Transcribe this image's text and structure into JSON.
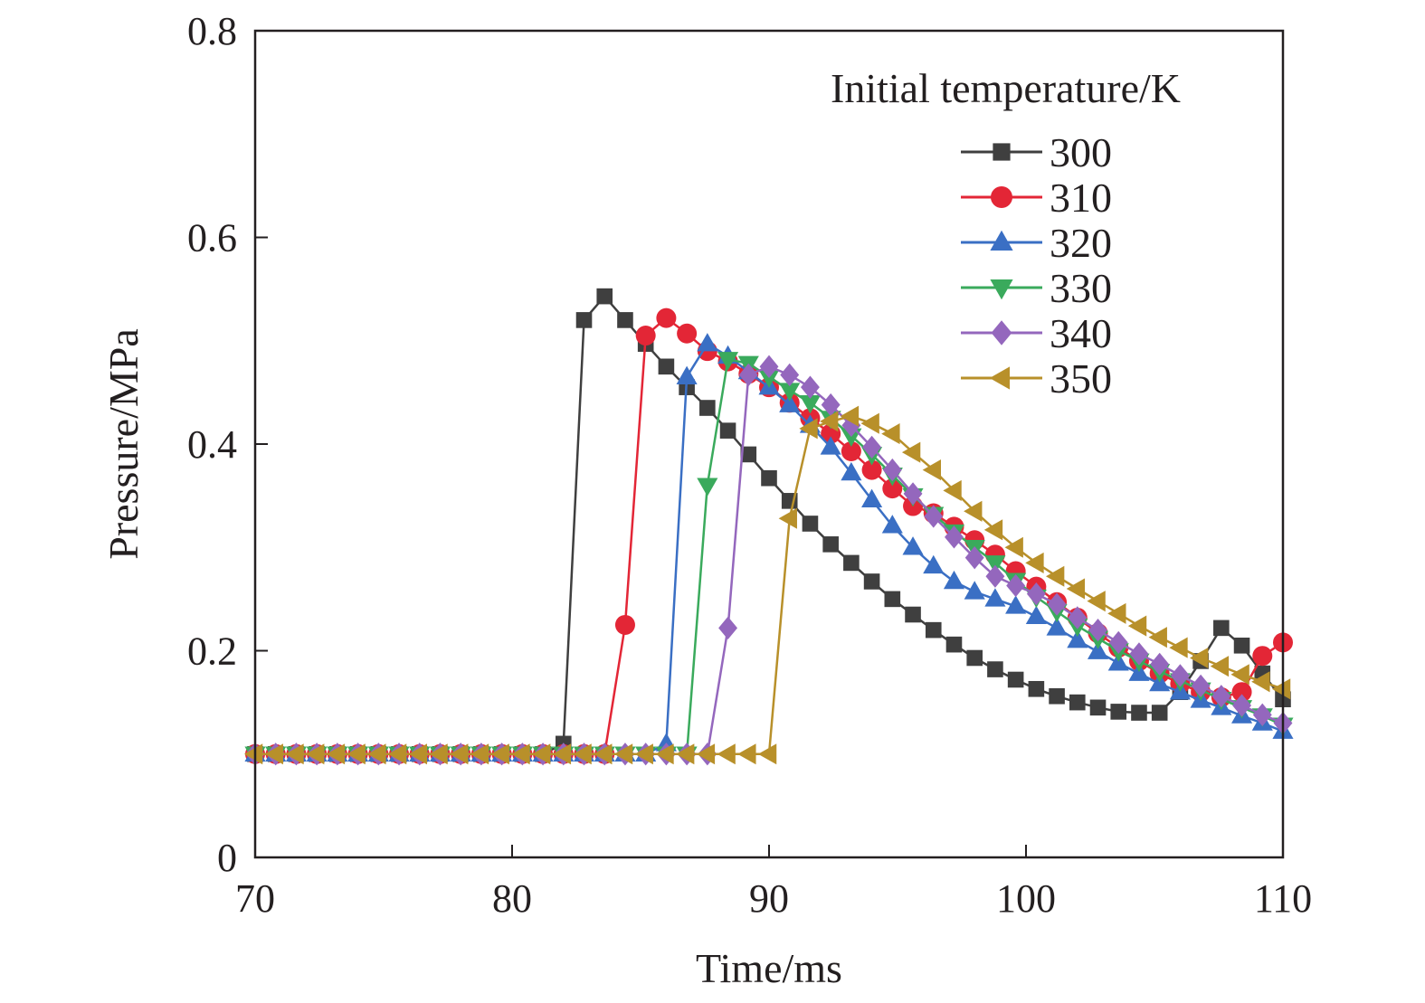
{
  "chart_data": {
    "type": "line",
    "xlabel": "Time/ms",
    "ylabel": "Pressure/MPa",
    "xlim": [
      70,
      110
    ],
    "ylim": [
      0,
      0.8
    ],
    "xticks": [
      70,
      80,
      90,
      100,
      110
    ],
    "yticks": [
      0,
      0.2,
      0.4,
      0.6,
      0.8
    ],
    "ytick_labels": [
      "0",
      "0.2",
      "0.4",
      "0.6",
      "0.8"
    ],
    "grid": false,
    "legend": {
      "title": "Initial temperature/K",
      "placement": "top-right"
    },
    "series": [
      {
        "name": "300",
        "color": "#3f3f3f",
        "marker": "square",
        "x": [
          70,
          70.8,
          71.6,
          72.4,
          73.2,
          74,
          74.8,
          75.6,
          76.4,
          77.2,
          78,
          78.8,
          79.6,
          80.4,
          81.2,
          82,
          82.8,
          83.6,
          84.4,
          85.2,
          86,
          86.8,
          87.6,
          88.4,
          89.2,
          90,
          90.8,
          91.6,
          92.4,
          93.2,
          94,
          94.8,
          95.6,
          96.4,
          97.2,
          98,
          98.8,
          99.6,
          100.4,
          101.2,
          102,
          102.8,
          103.6,
          104.4,
          105.2,
          106,
          106.8,
          107.6,
          108.4,
          109.2,
          110
        ],
        "y": [
          0.1,
          0.1,
          0.1,
          0.1,
          0.1,
          0.1,
          0.1,
          0.1,
          0.1,
          0.1,
          0.1,
          0.1,
          0.1,
          0.1,
          0.1,
          0.11,
          0.52,
          0.543,
          0.52,
          0.497,
          0.475,
          0.455,
          0.435,
          0.413,
          0.39,
          0.367,
          0.345,
          0.323,
          0.303,
          0.285,
          0.267,
          0.25,
          0.235,
          0.22,
          0.206,
          0.193,
          0.182,
          0.172,
          0.163,
          0.156,
          0.15,
          0.145,
          0.141,
          0.14,
          0.14,
          0.16,
          0.19,
          0.222,
          0.205,
          0.178,
          0.153
        ]
      },
      {
        "name": "310",
        "color": "#e32636",
        "marker": "circle",
        "x": [
          70,
          70.8,
          71.6,
          72.4,
          73.2,
          74,
          74.8,
          75.6,
          76.4,
          77.2,
          78,
          78.8,
          79.6,
          80.4,
          81.2,
          82,
          82.8,
          83.6,
          84.4,
          85.2,
          86,
          86.8,
          87.6,
          88.4,
          89.2,
          90,
          90.8,
          91.6,
          92.4,
          93.2,
          94,
          94.8,
          95.6,
          96.4,
          97.2,
          98,
          98.8,
          99.6,
          100.4,
          101.2,
          102,
          102.8,
          103.6,
          104.4,
          105.2,
          106,
          106.8,
          107.6,
          108.4,
          109.2,
          110
        ],
        "y": [
          0.1,
          0.1,
          0.1,
          0.1,
          0.1,
          0.1,
          0.1,
          0.1,
          0.1,
          0.1,
          0.1,
          0.1,
          0.1,
          0.1,
          0.1,
          0.1,
          0.1,
          0.1,
          0.225,
          0.505,
          0.522,
          0.507,
          0.49,
          0.48,
          0.468,
          0.455,
          0.44,
          0.425,
          0.41,
          0.393,
          0.375,
          0.357,
          0.34,
          0.333,
          0.32,
          0.307,
          0.293,
          0.277,
          0.262,
          0.247,
          0.232,
          0.217,
          0.203,
          0.19,
          0.178,
          0.168,
          0.16,
          0.155,
          0.16,
          0.195,
          0.208
        ]
      },
      {
        "name": "320",
        "color": "#3a6fc4",
        "marker": "triangle-up",
        "x": [
          70,
          70.8,
          71.6,
          72.4,
          73.2,
          74,
          74.8,
          75.6,
          76.4,
          77.2,
          78,
          78.8,
          79.6,
          80.4,
          81.2,
          82,
          82.8,
          83.6,
          84.4,
          85.2,
          86,
          86.8,
          87.6,
          88.4,
          89.2,
          90,
          90.8,
          91.6,
          92.4,
          93.2,
          94,
          94.8,
          95.6,
          96.4,
          97.2,
          98,
          98.8,
          99.6,
          100.4,
          101.2,
          102,
          102.8,
          103.6,
          104.4,
          105.2,
          106,
          106.8,
          107.6,
          108.4,
          109.2,
          110
        ],
        "y": [
          0.1,
          0.1,
          0.1,
          0.1,
          0.1,
          0.1,
          0.1,
          0.1,
          0.1,
          0.1,
          0.1,
          0.1,
          0.1,
          0.1,
          0.1,
          0.1,
          0.1,
          0.1,
          0.1,
          0.1,
          0.11,
          0.465,
          0.497,
          0.485,
          0.47,
          0.455,
          0.438,
          0.418,
          0.397,
          0.372,
          0.346,
          0.321,
          0.3,
          0.282,
          0.267,
          0.257,
          0.25,
          0.243,
          0.233,
          0.222,
          0.21,
          0.199,
          0.188,
          0.178,
          0.168,
          0.16,
          0.152,
          0.145,
          0.137,
          0.13,
          0.122
        ]
      },
      {
        "name": "330",
        "color": "#3aaa5c",
        "marker": "triangle-down",
        "x": [
          70,
          70.8,
          71.6,
          72.4,
          73.2,
          74,
          74.8,
          75.6,
          76.4,
          77.2,
          78,
          78.8,
          79.6,
          80.4,
          81.2,
          82,
          82.8,
          83.6,
          84.4,
          85.2,
          86,
          86.8,
          87.6,
          88.4,
          89.2,
          90,
          90.8,
          91.6,
          92.4,
          93.2,
          94,
          94.8,
          95.6,
          96.4,
          97.2,
          98,
          98.8,
          99.6,
          100.4,
          101.2,
          102,
          102.8,
          103.6,
          104.4,
          105.2,
          106,
          106.8,
          107.6,
          108.4,
          109.2,
          110
        ],
        "y": [
          0.1,
          0.1,
          0.1,
          0.1,
          0.1,
          0.1,
          0.1,
          0.1,
          0.1,
          0.1,
          0.1,
          0.1,
          0.1,
          0.1,
          0.1,
          0.1,
          0.1,
          0.1,
          0.1,
          0.1,
          0.1,
          0.1,
          0.36,
          0.482,
          0.478,
          0.465,
          0.452,
          0.44,
          0.425,
          0.408,
          0.39,
          0.37,
          0.35,
          0.332,
          0.315,
          0.3,
          0.285,
          0.268,
          0.252,
          0.238,
          0.224,
          0.212,
          0.2,
          0.19,
          0.18,
          0.171,
          0.162,
          0.153,
          0.145,
          0.137,
          0.128
        ]
      },
      {
        "name": "340",
        "color": "#9467bd",
        "marker": "diamond",
        "x": [
          70,
          70.8,
          71.6,
          72.4,
          73.2,
          74,
          74.8,
          75.6,
          76.4,
          77.2,
          78,
          78.8,
          79.6,
          80.4,
          81.2,
          82,
          82.8,
          83.6,
          84.4,
          85.2,
          86,
          86.8,
          87.6,
          88.4,
          89.2,
          90,
          90.8,
          91.6,
          92.4,
          93.2,
          94,
          94.8,
          95.6,
          96.4,
          97.2,
          98,
          98.8,
          99.6,
          100.4,
          101.2,
          102,
          102.8,
          103.6,
          104.4,
          105.2,
          106,
          106.8,
          107.6,
          108.4,
          109.2,
          110
        ],
        "y": [
          0.1,
          0.1,
          0.1,
          0.1,
          0.1,
          0.1,
          0.1,
          0.1,
          0.1,
          0.1,
          0.1,
          0.1,
          0.1,
          0.1,
          0.1,
          0.1,
          0.1,
          0.1,
          0.1,
          0.1,
          0.1,
          0.1,
          0.1,
          0.222,
          0.467,
          0.475,
          0.467,
          0.455,
          0.438,
          0.418,
          0.397,
          0.375,
          0.352,
          0.33,
          0.31,
          0.29,
          0.272,
          0.263,
          0.255,
          0.245,
          0.232,
          0.22,
          0.208,
          0.197,
          0.187,
          0.176,
          0.166,
          0.156,
          0.147,
          0.138,
          0.13
        ]
      },
      {
        "name": "350",
        "color": "#b8902a",
        "marker": "triangle-left",
        "x": [
          70,
          70.8,
          71.6,
          72.4,
          73.2,
          74,
          74.8,
          75.6,
          76.4,
          77.2,
          78,
          78.8,
          79.6,
          80.4,
          81.2,
          82,
          82.8,
          83.6,
          84.4,
          85.2,
          86,
          86.8,
          87.6,
          88.4,
          89.2,
          90,
          90.8,
          91.6,
          92.4,
          93.2,
          94,
          94.8,
          95.6,
          96.4,
          97.2,
          98,
          98.8,
          99.6,
          100.4,
          101.2,
          102,
          102.8,
          103.6,
          104.4,
          105.2,
          106,
          106.8,
          107.6,
          108.4,
          109.2,
          110
        ],
        "y": [
          0.1,
          0.1,
          0.1,
          0.1,
          0.1,
          0.1,
          0.1,
          0.1,
          0.1,
          0.1,
          0.1,
          0.1,
          0.1,
          0.1,
          0.1,
          0.1,
          0.1,
          0.1,
          0.1,
          0.1,
          0.1,
          0.1,
          0.1,
          0.1,
          0.1,
          0.1,
          0.328,
          0.415,
          0.422,
          0.427,
          0.42,
          0.41,
          0.392,
          0.375,
          0.355,
          0.335,
          0.317,
          0.3,
          0.285,
          0.272,
          0.26,
          0.248,
          0.236,
          0.224,
          0.213,
          0.203,
          0.193,
          0.185,
          0.177,
          0.17,
          0.163
        ]
      }
    ]
  }
}
